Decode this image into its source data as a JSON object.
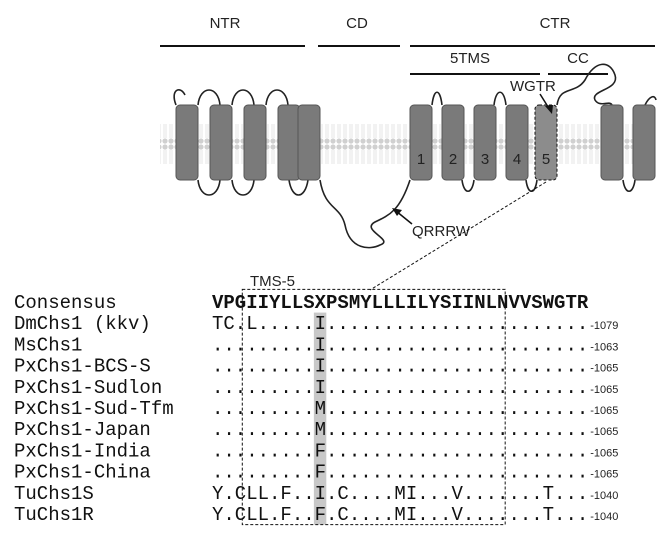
{
  "domains": {
    "ntr": "NTR",
    "cd": "CD",
    "ctr": "CTR",
    "tms_group": "5TMS",
    "cc": "CC"
  },
  "helices": [
    "1",
    "2",
    "3",
    "4",
    "5"
  ],
  "annotations": {
    "wgtr": "WGTR",
    "qrrrw": "QRRRW",
    "tms5": "TMS-5"
  },
  "alignment": {
    "rows": [
      {
        "name": "Consensus",
        "sequence": "VPGIIYLLSXPSMYLLLILYSIINLNVVSWGTR"
      },
      {
        "name": "DmChs1 (kkv)",
        "sequence": "TC.L.....I.......................",
        "end": "-1079"
      },
      {
        "name": "MsChs1",
        "sequence": ".........I.......................",
        "end": "-1063"
      },
      {
        "name": "PxChs1-BCS-S",
        "sequence": ".........I.......................",
        "end": "-1065"
      },
      {
        "name": "PxChs1-Sudlon",
        "sequence": ".........I.......................",
        "end": "-1065"
      },
      {
        "name": "PxChs1-Sud-Tfm",
        "sequence": ".........M.......................",
        "end": "-1065"
      },
      {
        "name": "PxChs1-Japan",
        "sequence": ".........M.......................",
        "end": "-1065"
      },
      {
        "name": "PxChs1-India",
        "sequence": ".........F.......................",
        "end": "-1065"
      },
      {
        "name": "PxChs1-China",
        "sequence": ".........F.......................",
        "end": "-1065"
      },
      {
        "name": "TuChs1S",
        "sequence": "Y.CLL.F..I.C....MI...V.......T...",
        "end": "-1040"
      },
      {
        "name": "TuChs1R",
        "sequence": "Y.CLL.F..F.C....MI...V.......T...",
        "end": "-1040"
      }
    ]
  }
}
